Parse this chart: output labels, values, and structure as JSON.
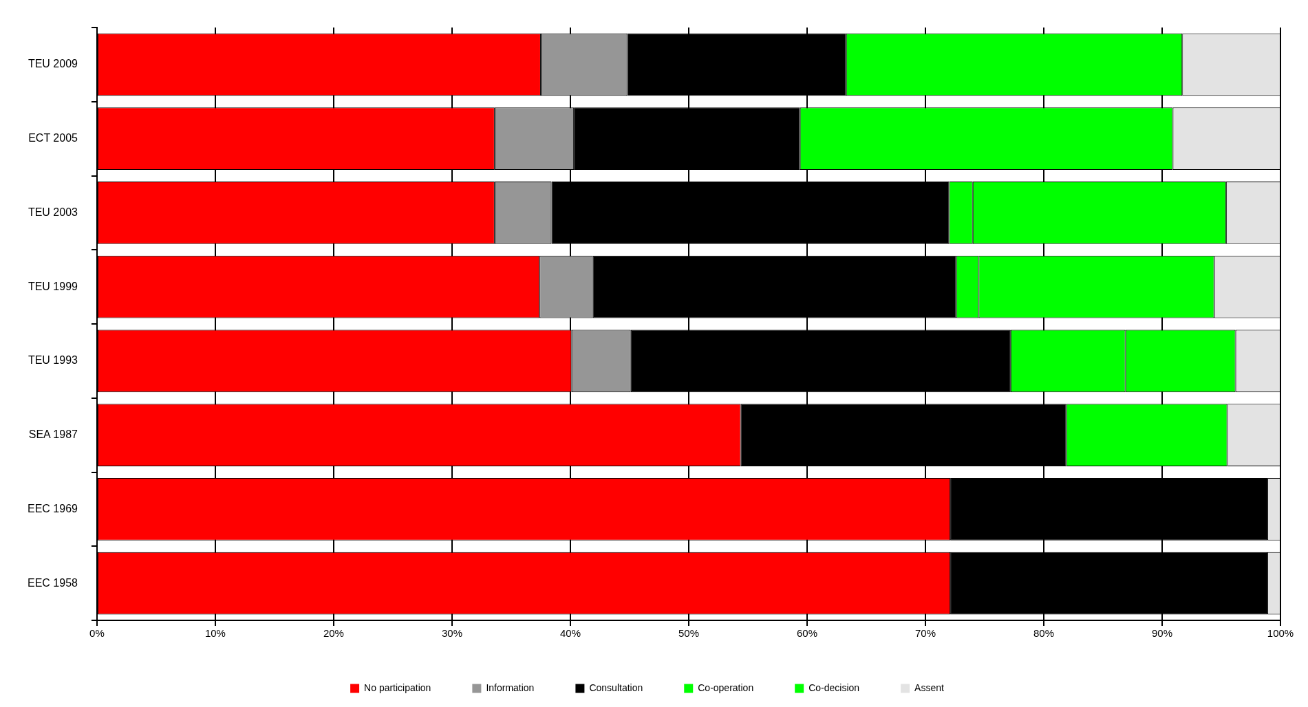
{
  "chart_data": {
    "type": "bar",
    "orientation": "horizontal",
    "stacked": true,
    "categories": [
      "TEU 2009",
      "ECT 2005",
      "TEU 2003",
      "TEU 1999",
      "TEU 1993",
      "SEA 1987",
      "EEC 1969",
      "EEC 1958"
    ],
    "series": [
      {
        "name": "No participation",
        "color": "#ff0000",
        "values": [
          37.5,
          33.6,
          33.6,
          37.4,
          40.1,
          54.4,
          72.1,
          72.1
        ]
      },
      {
        "name": "Information",
        "color": "#969696",
        "values": [
          7.3,
          6.7,
          4.8,
          4.5,
          5.0,
          null,
          null,
          null
        ]
      },
      {
        "name": "Consultation",
        "color": "#000000",
        "values": [
          18.5,
          19.1,
          33.6,
          30.7,
          32.1,
          27.5,
          26.8,
          26.8
        ]
      },
      {
        "name": "Co-operation",
        "color": "#00ff00",
        "values": [
          null,
          null,
          2.0,
          1.9,
          9.7,
          13.6,
          null,
          null
        ]
      },
      {
        "name": "Co-decision",
        "color": "#00ff00",
        "values": [
          28.4,
          31.5,
          21.4,
          19.9,
          9.3,
          null,
          null,
          null
        ]
      },
      {
        "name": "Assent",
        "color": "#e3e3e3",
        "values": [
          8.3,
          9.1,
          4.6,
          5.6,
          3.8,
          4.5,
          1.1,
          1.1
        ]
      }
    ],
    "xlim": [
      0,
      100
    ],
    "xticks": [
      {
        "value": 0,
        "label": "0%"
      },
      {
        "value": 10,
        "label": "10%"
      },
      {
        "value": 20,
        "label": "20%"
      },
      {
        "value": 30,
        "label": "30%"
      },
      {
        "value": 40,
        "label": "40%"
      },
      {
        "value": 50,
        "label": "50%"
      },
      {
        "value": 60,
        "label": "60%"
      },
      {
        "value": 70,
        "label": "70%"
      },
      {
        "value": 80,
        "label": "80%"
      },
      {
        "value": 90,
        "label": "90%"
      },
      {
        "value": 100,
        "label": "100%"
      }
    ],
    "grid": "x",
    "legend": "bottom"
  }
}
